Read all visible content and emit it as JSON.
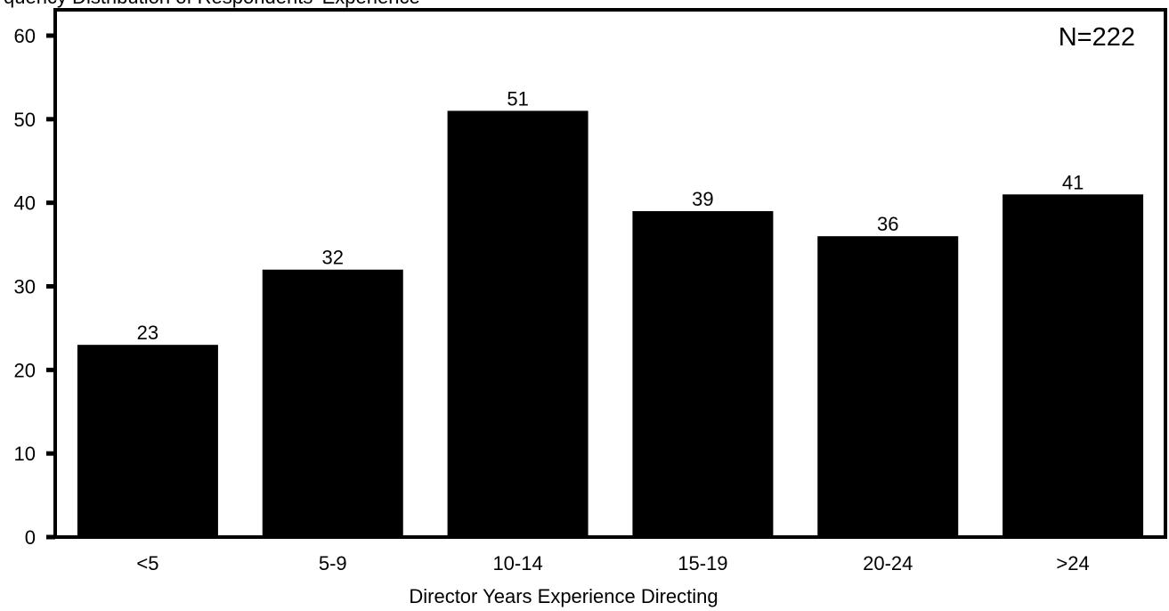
{
  "chart_data": {
    "type": "bar",
    "title": "",
    "cropped_header": "quency Distribution of Respondents' Experience",
    "xlabel": "Director Years Experience Directing",
    "ylabel": "",
    "categories": [
      "<5",
      "5-9",
      "10-14",
      "15-19",
      "20-24",
      ">24"
    ],
    "values": [
      23,
      32,
      51,
      39,
      36,
      41
    ],
    "data_labels": [
      "23",
      "32",
      "51",
      "39",
      "36",
      "41"
    ],
    "ylim": [
      0,
      60
    ],
    "yticks": [
      0,
      10,
      20,
      30,
      40,
      50,
      60
    ],
    "ytick_labels": [
      "0",
      "10",
      "20",
      "30",
      "40",
      "50",
      "60"
    ],
    "annotation": "N=222",
    "grid": false,
    "legend": "none",
    "bar_color": "#000000"
  }
}
